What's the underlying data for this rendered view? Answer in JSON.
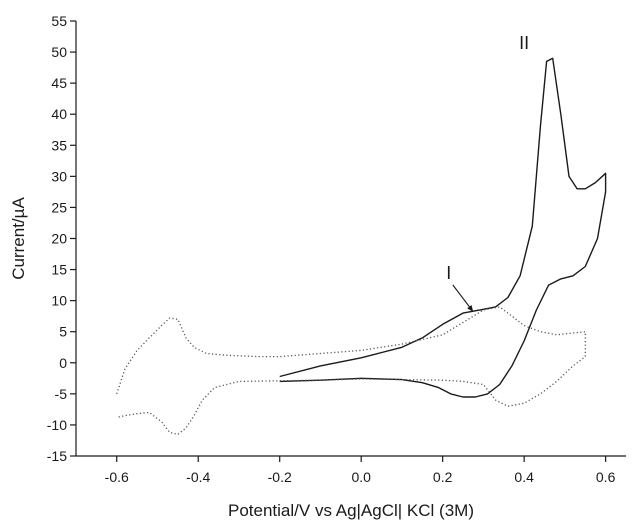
{
  "chart_data": {
    "type": "line",
    "title": "",
    "xlabel": "Potential/V vs Ag|AgCl| KCl (3M)",
    "ylabel": "Current/µA",
    "xlim": [
      -0.7,
      0.65
    ],
    "ylim": [
      -15,
      55
    ],
    "xticks": [
      "-0.6",
      "-0.4",
      "-0.2",
      "0.0",
      "0.2",
      "0.4",
      "0.6"
    ],
    "xtick_values": [
      -0.6,
      -0.4,
      -0.2,
      0.0,
      0.2,
      0.4,
      0.6
    ],
    "yticks": [
      "-15",
      "-10",
      "-5",
      "0",
      "5",
      "10",
      "15",
      "20",
      "25",
      "30",
      "35",
      "40",
      "45",
      "50",
      "55"
    ],
    "ytick_values": [
      -15,
      -10,
      -5,
      0,
      5,
      10,
      15,
      20,
      25,
      30,
      35,
      40,
      45,
      50,
      55
    ],
    "grid": false,
    "legend": "none",
    "series": [
      {
        "style": "solid",
        "color": "#1a1a1a",
        "x": [
          -0.2,
          -0.1,
          0.0,
          0.1,
          0.15,
          0.2,
          0.25,
          0.3,
          0.33,
          0.36,
          0.39,
          0.42,
          0.44,
          0.455,
          0.47,
          0.49,
          0.51,
          0.53,
          0.55,
          0.575,
          0.6,
          0.6,
          0.58,
          0.55,
          0.52,
          0.49,
          0.46,
          0.43,
          0.4,
          0.37,
          0.34,
          0.31,
          0.28,
          0.25,
          0.22,
          0.19,
          0.15,
          0.1,
          0.0,
          -0.1,
          -0.2
        ],
        "y": [
          -2.2,
          -0.5,
          0.8,
          2.5,
          4.0,
          6.2,
          8.0,
          8.6,
          9.0,
          10.5,
          14.0,
          22.0,
          38.0,
          48.5,
          49.0,
          40.0,
          30.0,
          28.0,
          28.0,
          29.0,
          30.5,
          27.5,
          20.0,
          15.5,
          14.0,
          13.5,
          12.5,
          8.5,
          3.5,
          -0.5,
          -3.5,
          -5.0,
          -5.5,
          -5.5,
          -5.0,
          -4.0,
          -3.2,
          -2.7,
          -2.5,
          -2.8,
          -3.0
        ]
      },
      {
        "style": "dotted",
        "color": "#555555",
        "x": [
          -0.6,
          -0.58,
          -0.55,
          -0.52,
          -0.49,
          -0.47,
          -0.45,
          -0.43,
          -0.41,
          -0.38,
          -0.33,
          -0.25,
          -0.2,
          -0.1,
          0.0,
          0.1,
          0.2,
          0.25,
          0.3,
          0.34,
          0.37,
          0.4,
          0.44,
          0.48,
          0.52,
          0.55,
          0.55,
          0.52,
          0.48,
          0.44,
          0.4,
          0.36,
          0.33,
          0.3,
          0.25,
          0.2,
          0.1,
          0.0,
          -0.1,
          -0.2,
          -0.3,
          -0.36,
          -0.39,
          -0.41,
          -0.43,
          -0.45,
          -0.47,
          -0.49,
          -0.52,
          -0.55,
          -0.58,
          -0.6
        ],
        "y": [
          -5.0,
          -1.0,
          2.0,
          4.0,
          6.0,
          7.2,
          7.0,
          4.0,
          2.5,
          1.5,
          1.2,
          1.0,
          1.0,
          1.5,
          2.0,
          3.0,
          4.5,
          6.5,
          8.5,
          9.0,
          7.5,
          6.0,
          5.0,
          4.5,
          4.8,
          5.0,
          1.0,
          -0.5,
          -3.0,
          -5.0,
          -6.5,
          -7.0,
          -6.0,
          -3.5,
          -3.0,
          -2.8,
          -2.7,
          -2.6,
          -2.8,
          -2.9,
          -3.0,
          -4.0,
          -6.0,
          -8.5,
          -10.5,
          -11.5,
          -11.2,
          -9.5,
          -8.0,
          -8.2,
          -8.5,
          -8.8
        ]
      }
    ],
    "annotations": [
      {
        "text": "I",
        "x": 0.215,
        "y": 13.5,
        "arrow_to": [
          0.275,
          8.2
        ]
      },
      {
        "text": "II",
        "x": 0.4,
        "y": 50.5
      }
    ]
  }
}
